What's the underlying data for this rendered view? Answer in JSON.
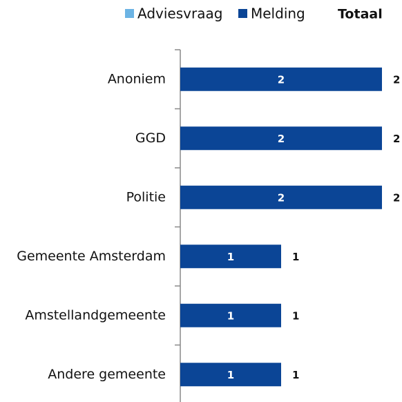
{
  "chart_data": {
    "type": "bar",
    "orientation": "horizontal",
    "stacked": true,
    "categories": [
      "Anoniem",
      "GGD",
      "Politie",
      "Gemeente Amsterdam",
      "Amstellandgemeente",
      "Andere gemeente"
    ],
    "series": [
      {
        "name": "Adviesvraag",
        "color": "#6cb4e4",
        "values": [
          0,
          0,
          0,
          0,
          0,
          0
        ]
      },
      {
        "name": "Melding",
        "color": "#0b4596",
        "values": [
          2,
          2,
          2,
          1,
          1,
          1
        ]
      }
    ],
    "totals_name": "Totaal",
    "totals": [
      2,
      2,
      2,
      1,
      1,
      1
    ],
    "xlim": [
      0,
      2
    ]
  }
}
